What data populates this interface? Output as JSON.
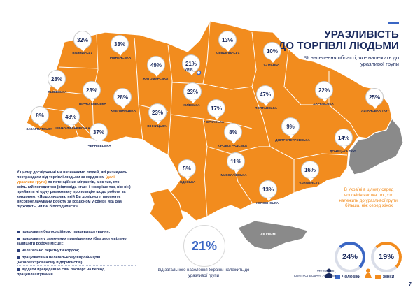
{
  "title_line1": "УРАЗЛИВІСТЬ",
  "title_line2": "ДО ТОРГІВЛІ ЛЮДЬМИ",
  "subtitle": "% населення області, яке належить до уразливої групи",
  "regions": [
    {
      "name": "ВОЛИНСЬКА",
      "value": "32%"
    },
    {
      "name": "РІВНЕНСЬКА",
      "value": "33%"
    },
    {
      "name": "ЖИТОМИРСЬКА",
      "value": "49%"
    },
    {
      "name": "ЧЕРНІГІВСЬКА",
      "value": "13%"
    },
    {
      "name": "СУМСЬКА",
      "value": "10%"
    },
    {
      "name": "ЛЬВІВСЬКА",
      "value": "28%"
    },
    {
      "name": "ТЕРНОПІЛЬСЬКА",
      "value": "23%"
    },
    {
      "name": "ХМЕЛЬНИЦЬКА",
      "value": "28%"
    },
    {
      "name": "КИЇВСЬКА",
      "value": "23%"
    },
    {
      "name": "ПОЛТАВСЬКА",
      "value": "47%"
    },
    {
      "name": "ХАРКІВСЬКА",
      "value": "22%"
    },
    {
      "name": "ЛУГАНСЬКА ТКУ*",
      "value": "25%"
    },
    {
      "name": "ЗАКАРПАТСЬКА",
      "value": "8%"
    },
    {
      "name": "ІВАНО-ФРАНКІВСЬКА",
      "value": "48%"
    },
    {
      "name": "ЧЕРНІВЕЦЬКА",
      "value": "37%"
    },
    {
      "name": "ВІННИЦЬКА",
      "value": "23%"
    },
    {
      "name": "ЧЕРКАСЬКА",
      "value": "17%"
    },
    {
      "name": "КІРОВОГРАДСЬКА",
      "value": "8%"
    },
    {
      "name": "ДНІПРОПЕТРОВСЬКА",
      "value": "9%"
    },
    {
      "name": "ДОНЕЦЬКА ТКУ*",
      "value": "14%"
    },
    {
      "name": "ОДЕСЬКА",
      "value": "5%"
    },
    {
      "name": "МИКОЛАЇВСЬКА",
      "value": "11%"
    },
    {
      "name": "ЗАПОРІЗЬКА",
      "value": "16%"
    },
    {
      "name": "ХЕРСОНСЬКА",
      "value": "13%"
    },
    {
      "name": "КИЇВ",
      "value": "21%"
    }
  ],
  "crimea_label": "АР КРИМ",
  "info_text_a": "У цьому дослідженні ми визначаємо людей, які ризикують постраждати від торгівлі людьми за кордоном",
  "info_text_highlight": "(далі – уразлива група)",
  "info_text_b": "як потенційних мігрантів, а як тих, хто скільний погодитися (відповідь «так» і «скоріше так, ніж ні») прийняти ні одну ризиковану пропозицію щодо роботи за кордоном: «Якщо людина, якій Ви довіряєте, пропонує високооплачувану роботу за кордоном у сфері, яка Вам підходить, чи Ви б погодилися:»",
  "bullets": [
    "працювати без офіційного працевлаштування;",
    "працювати у замкнених приміщеннях (без змоги вільно залишити робоче місце);",
    "нелегально перетнути кордон;",
    "працювати на нелегальному виробництві (незареєстрованому підприємстві);",
    "віддати працедавцю свій паспорт на період працевлаштування."
  ],
  "overall_value": "21%",
  "overall_caption": "від загального населення України належить до уразливої групи",
  "compare_text": "В Україні в цілому серед чоловіків частка тих, хто належить до уразливої групи, більша, ніж серед жінок",
  "men_value": "24%",
  "women_value": "19%",
  "men_label": "ЧОЛОВІКИ",
  "women_label": "ЖІНКИ",
  "territories_note": "*ТЕРИТОРІЇ, КОНТРОЛЬОВАНІ УРЯДОМ",
  "page_number": "7",
  "colors": {
    "region": "#f28c1e",
    "accent": "#3a66c4",
    "navy": "#1a2a5e",
    "uncontrolled": "#8a8a8a"
  }
}
